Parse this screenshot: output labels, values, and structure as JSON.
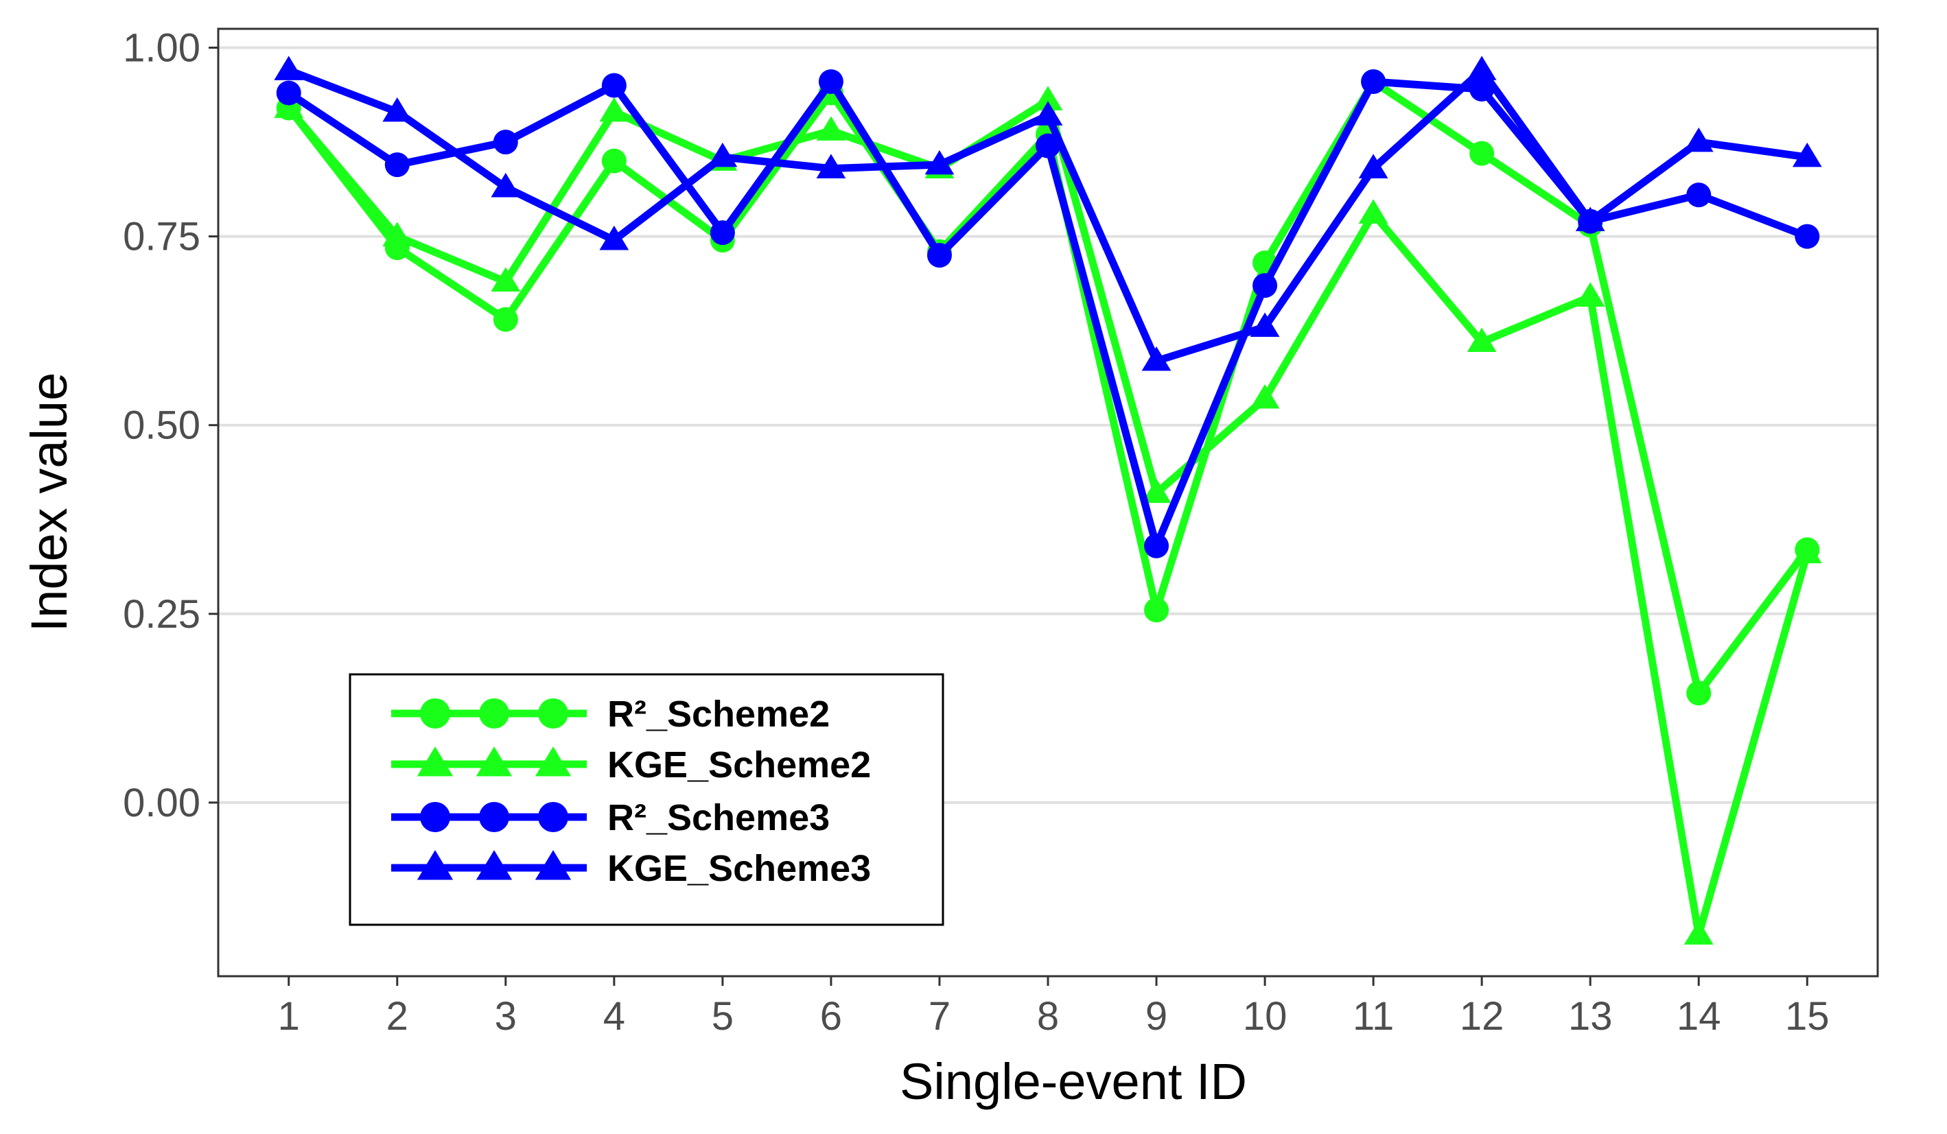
{
  "chart_data": {
    "type": "line",
    "title": "",
    "xlabel": "Single-event ID",
    "ylabel": "Index value",
    "x": [
      1,
      2,
      3,
      4,
      5,
      6,
      7,
      8,
      9,
      10,
      11,
      12,
      13,
      14,
      15
    ],
    "x_tick_labels": [
      "1",
      "2",
      "3",
      "4",
      "5",
      "6",
      "7",
      "8",
      "9",
      "10",
      "11",
      "12",
      "13",
      "14",
      "15"
    ],
    "y_ticks": [
      0.0,
      0.25,
      0.5,
      0.75,
      1.0
    ],
    "y_tick_labels": [
      "0.00",
      "0.25",
      "0.50",
      "0.75",
      "1.00"
    ],
    "xlim": [
      0.35,
      15.65
    ],
    "ylim": [
      -0.23,
      1.025
    ],
    "grid": "horizontal",
    "legend_position": "bottom-left",
    "series": [
      {
        "name": "R²_Scheme2",
        "color": "#1aff1a",
        "marker": "circle",
        "values": [
          0.92,
          0.735,
          0.64,
          0.85,
          0.745,
          0.94,
          0.73,
          0.885,
          0.255,
          0.715,
          0.955,
          0.86,
          0.765,
          0.145,
          0.335
        ]
      },
      {
        "name": "KGE_Scheme2",
        "color": "#1aff1a",
        "marker": "triangle",
        "values": [
          0.92,
          0.75,
          0.69,
          0.915,
          0.85,
          0.89,
          0.84,
          0.93,
          0.41,
          0.535,
          0.78,
          0.61,
          0.67,
          -0.175,
          0.33
        ]
      },
      {
        "name": "R²_Scheme3",
        "color": "#0000ff",
        "marker": "circle",
        "values": [
          0.94,
          0.845,
          0.875,
          0.95,
          0.755,
          0.955,
          0.725,
          0.87,
          0.34,
          0.685,
          0.955,
          0.945,
          0.77,
          0.805,
          0.75
        ]
      },
      {
        "name": "KGE_Scheme3",
        "color": "#0000ff",
        "marker": "triangle",
        "values": [
          0.97,
          0.915,
          0.815,
          0.745,
          0.855,
          0.84,
          0.845,
          0.91,
          0.585,
          0.63,
          0.84,
          0.97,
          0.77,
          0.875,
          0.855
        ]
      }
    ]
  }
}
